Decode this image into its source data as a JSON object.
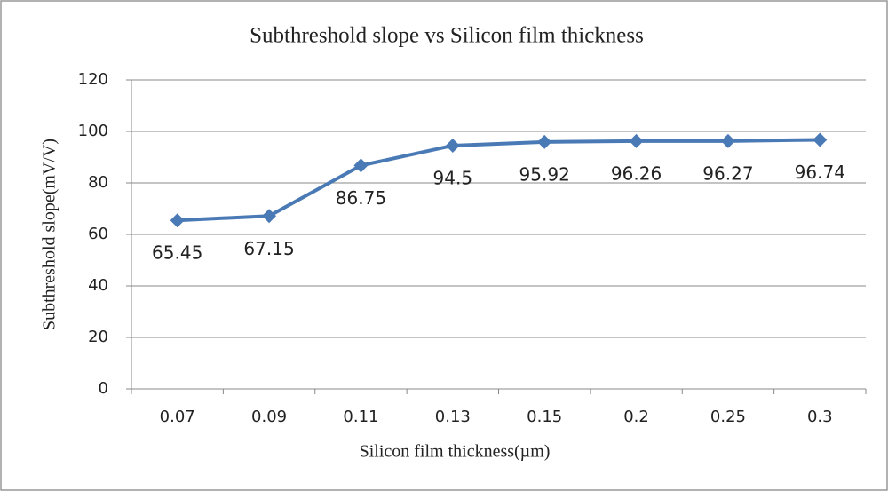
{
  "chart_data": {
    "type": "line",
    "title": "Subthreshold slope vs Silicon film thickness",
    "x_label": "Silicon film thickness(µm)",
    "y_label": "Subthreshold slope(mV/V)",
    "categories": [
      "0.07",
      "0.09",
      "0.11",
      "0.13",
      "0.15",
      "0.2",
      "0.25",
      "0.3"
    ],
    "series": [
      {
        "name": "Subthreshold slope",
        "color": "#4a7ab5",
        "values": [
          65.45,
          67.15,
          86.75,
          94.5,
          95.92,
          96.26,
          96.27,
          96.74
        ]
      }
    ],
    "ylim": [
      0,
      120
    ],
    "yticks": [
      0,
      20,
      40,
      60,
      80,
      100,
      120
    ],
    "grid": true
  }
}
